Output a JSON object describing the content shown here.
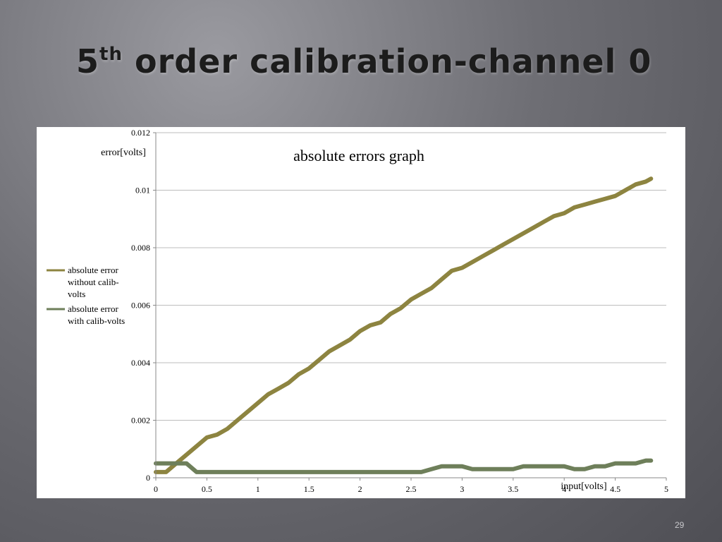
{
  "slide": {
    "title_main": "5",
    "title_sup": "th",
    "title_rest": " order calibration-channel 0",
    "page_number": "29"
  },
  "colors": {
    "without_calib": "#8d8440",
    "with_calib": "#6e7f5a"
  },
  "chart_data": {
    "type": "line",
    "title": "absolute errors graph",
    "xlabel": "input[volts]",
    "ylabel": "error[volts]",
    "xlim": [
      0,
      5
    ],
    "ylim": [
      0,
      0.012
    ],
    "xticks": [
      "0",
      "0.5",
      "1",
      "1.5",
      "2",
      "2.5",
      "3",
      "3.5",
      "4",
      "4.5",
      "5"
    ],
    "yticks": [
      "0",
      "0.002",
      "0.004",
      "0.006",
      "0.008",
      "0.01",
      "0.012"
    ],
    "grid": "horizontal",
    "legend_position": "left",
    "series": [
      {
        "name": "absolute error without calib-volts",
        "color": "#8d8440",
        "points": [
          [
            0.0,
            0.0002
          ],
          [
            0.1,
            0.0002
          ],
          [
            0.2,
            0.0005
          ],
          [
            0.3,
            0.0008
          ],
          [
            0.4,
            0.0011
          ],
          [
            0.5,
            0.0014
          ],
          [
            0.6,
            0.0015
          ],
          [
            0.7,
            0.0017
          ],
          [
            0.8,
            0.002
          ],
          [
            0.9,
            0.0023
          ],
          [
            1.0,
            0.0026
          ],
          [
            1.1,
            0.0029
          ],
          [
            1.2,
            0.0031
          ],
          [
            1.3,
            0.0033
          ],
          [
            1.4,
            0.0036
          ],
          [
            1.5,
            0.0038
          ],
          [
            1.6,
            0.0041
          ],
          [
            1.7,
            0.0044
          ],
          [
            1.8,
            0.0046
          ],
          [
            1.9,
            0.0048
          ],
          [
            2.0,
            0.0051
          ],
          [
            2.1,
            0.0053
          ],
          [
            2.2,
            0.0054
          ],
          [
            2.3,
            0.0057
          ],
          [
            2.4,
            0.0059
          ],
          [
            2.5,
            0.0062
          ],
          [
            2.6,
            0.0064
          ],
          [
            2.7,
            0.0066
          ],
          [
            2.8,
            0.0069
          ],
          [
            2.9,
            0.0072
          ],
          [
            3.0,
            0.0073
          ],
          [
            3.1,
            0.0075
          ],
          [
            3.2,
            0.0077
          ],
          [
            3.3,
            0.0079
          ],
          [
            3.4,
            0.0081
          ],
          [
            3.5,
            0.0083
          ],
          [
            3.6,
            0.0085
          ],
          [
            3.7,
            0.0087
          ],
          [
            3.8,
            0.0089
          ],
          [
            3.9,
            0.0091
          ],
          [
            4.0,
            0.0092
          ],
          [
            4.1,
            0.0094
          ],
          [
            4.2,
            0.0095
          ],
          [
            4.3,
            0.0096
          ],
          [
            4.4,
            0.0097
          ],
          [
            4.5,
            0.0098
          ],
          [
            4.6,
            0.01
          ],
          [
            4.7,
            0.0102
          ],
          [
            4.8,
            0.0103
          ],
          [
            4.85,
            0.0104
          ]
        ]
      },
      {
        "name": "absolute error with calib-volts",
        "color": "#6e7f5a",
        "points": [
          [
            0.0,
            0.0005
          ],
          [
            0.1,
            0.0005
          ],
          [
            0.2,
            0.0005
          ],
          [
            0.3,
            0.0005
          ],
          [
            0.4,
            0.0002
          ],
          [
            0.5,
            0.0002
          ],
          [
            0.6,
            0.0002
          ],
          [
            0.7,
            0.0002
          ],
          [
            0.8,
            0.0002
          ],
          [
            0.9,
            0.0002
          ],
          [
            1.0,
            0.0002
          ],
          [
            1.1,
            0.0002
          ],
          [
            1.2,
            0.0002
          ],
          [
            1.3,
            0.0002
          ],
          [
            1.4,
            0.0002
          ],
          [
            1.5,
            0.0002
          ],
          [
            1.6,
            0.0002
          ],
          [
            1.7,
            0.0002
          ],
          [
            1.8,
            0.0002
          ],
          [
            1.9,
            0.0002
          ],
          [
            2.0,
            0.0002
          ],
          [
            2.1,
            0.0002
          ],
          [
            2.2,
            0.0002
          ],
          [
            2.3,
            0.0002
          ],
          [
            2.4,
            0.0002
          ],
          [
            2.5,
            0.0002
          ],
          [
            2.6,
            0.0002
          ],
          [
            2.7,
            0.0003
          ],
          [
            2.8,
            0.0004
          ],
          [
            2.9,
            0.0004
          ],
          [
            3.0,
            0.0004
          ],
          [
            3.1,
            0.0003
          ],
          [
            3.2,
            0.0003
          ],
          [
            3.3,
            0.0003
          ],
          [
            3.4,
            0.0003
          ],
          [
            3.5,
            0.0003
          ],
          [
            3.6,
            0.0004
          ],
          [
            3.7,
            0.0004
          ],
          [
            3.8,
            0.0004
          ],
          [
            3.9,
            0.0004
          ],
          [
            4.0,
            0.0004
          ],
          [
            4.1,
            0.0003
          ],
          [
            4.2,
            0.0003
          ],
          [
            4.3,
            0.0004
          ],
          [
            4.4,
            0.0004
          ],
          [
            4.5,
            0.0005
          ],
          [
            4.6,
            0.0005
          ],
          [
            4.7,
            0.0005
          ],
          [
            4.8,
            0.0006
          ],
          [
            4.85,
            0.0006
          ]
        ]
      }
    ]
  }
}
